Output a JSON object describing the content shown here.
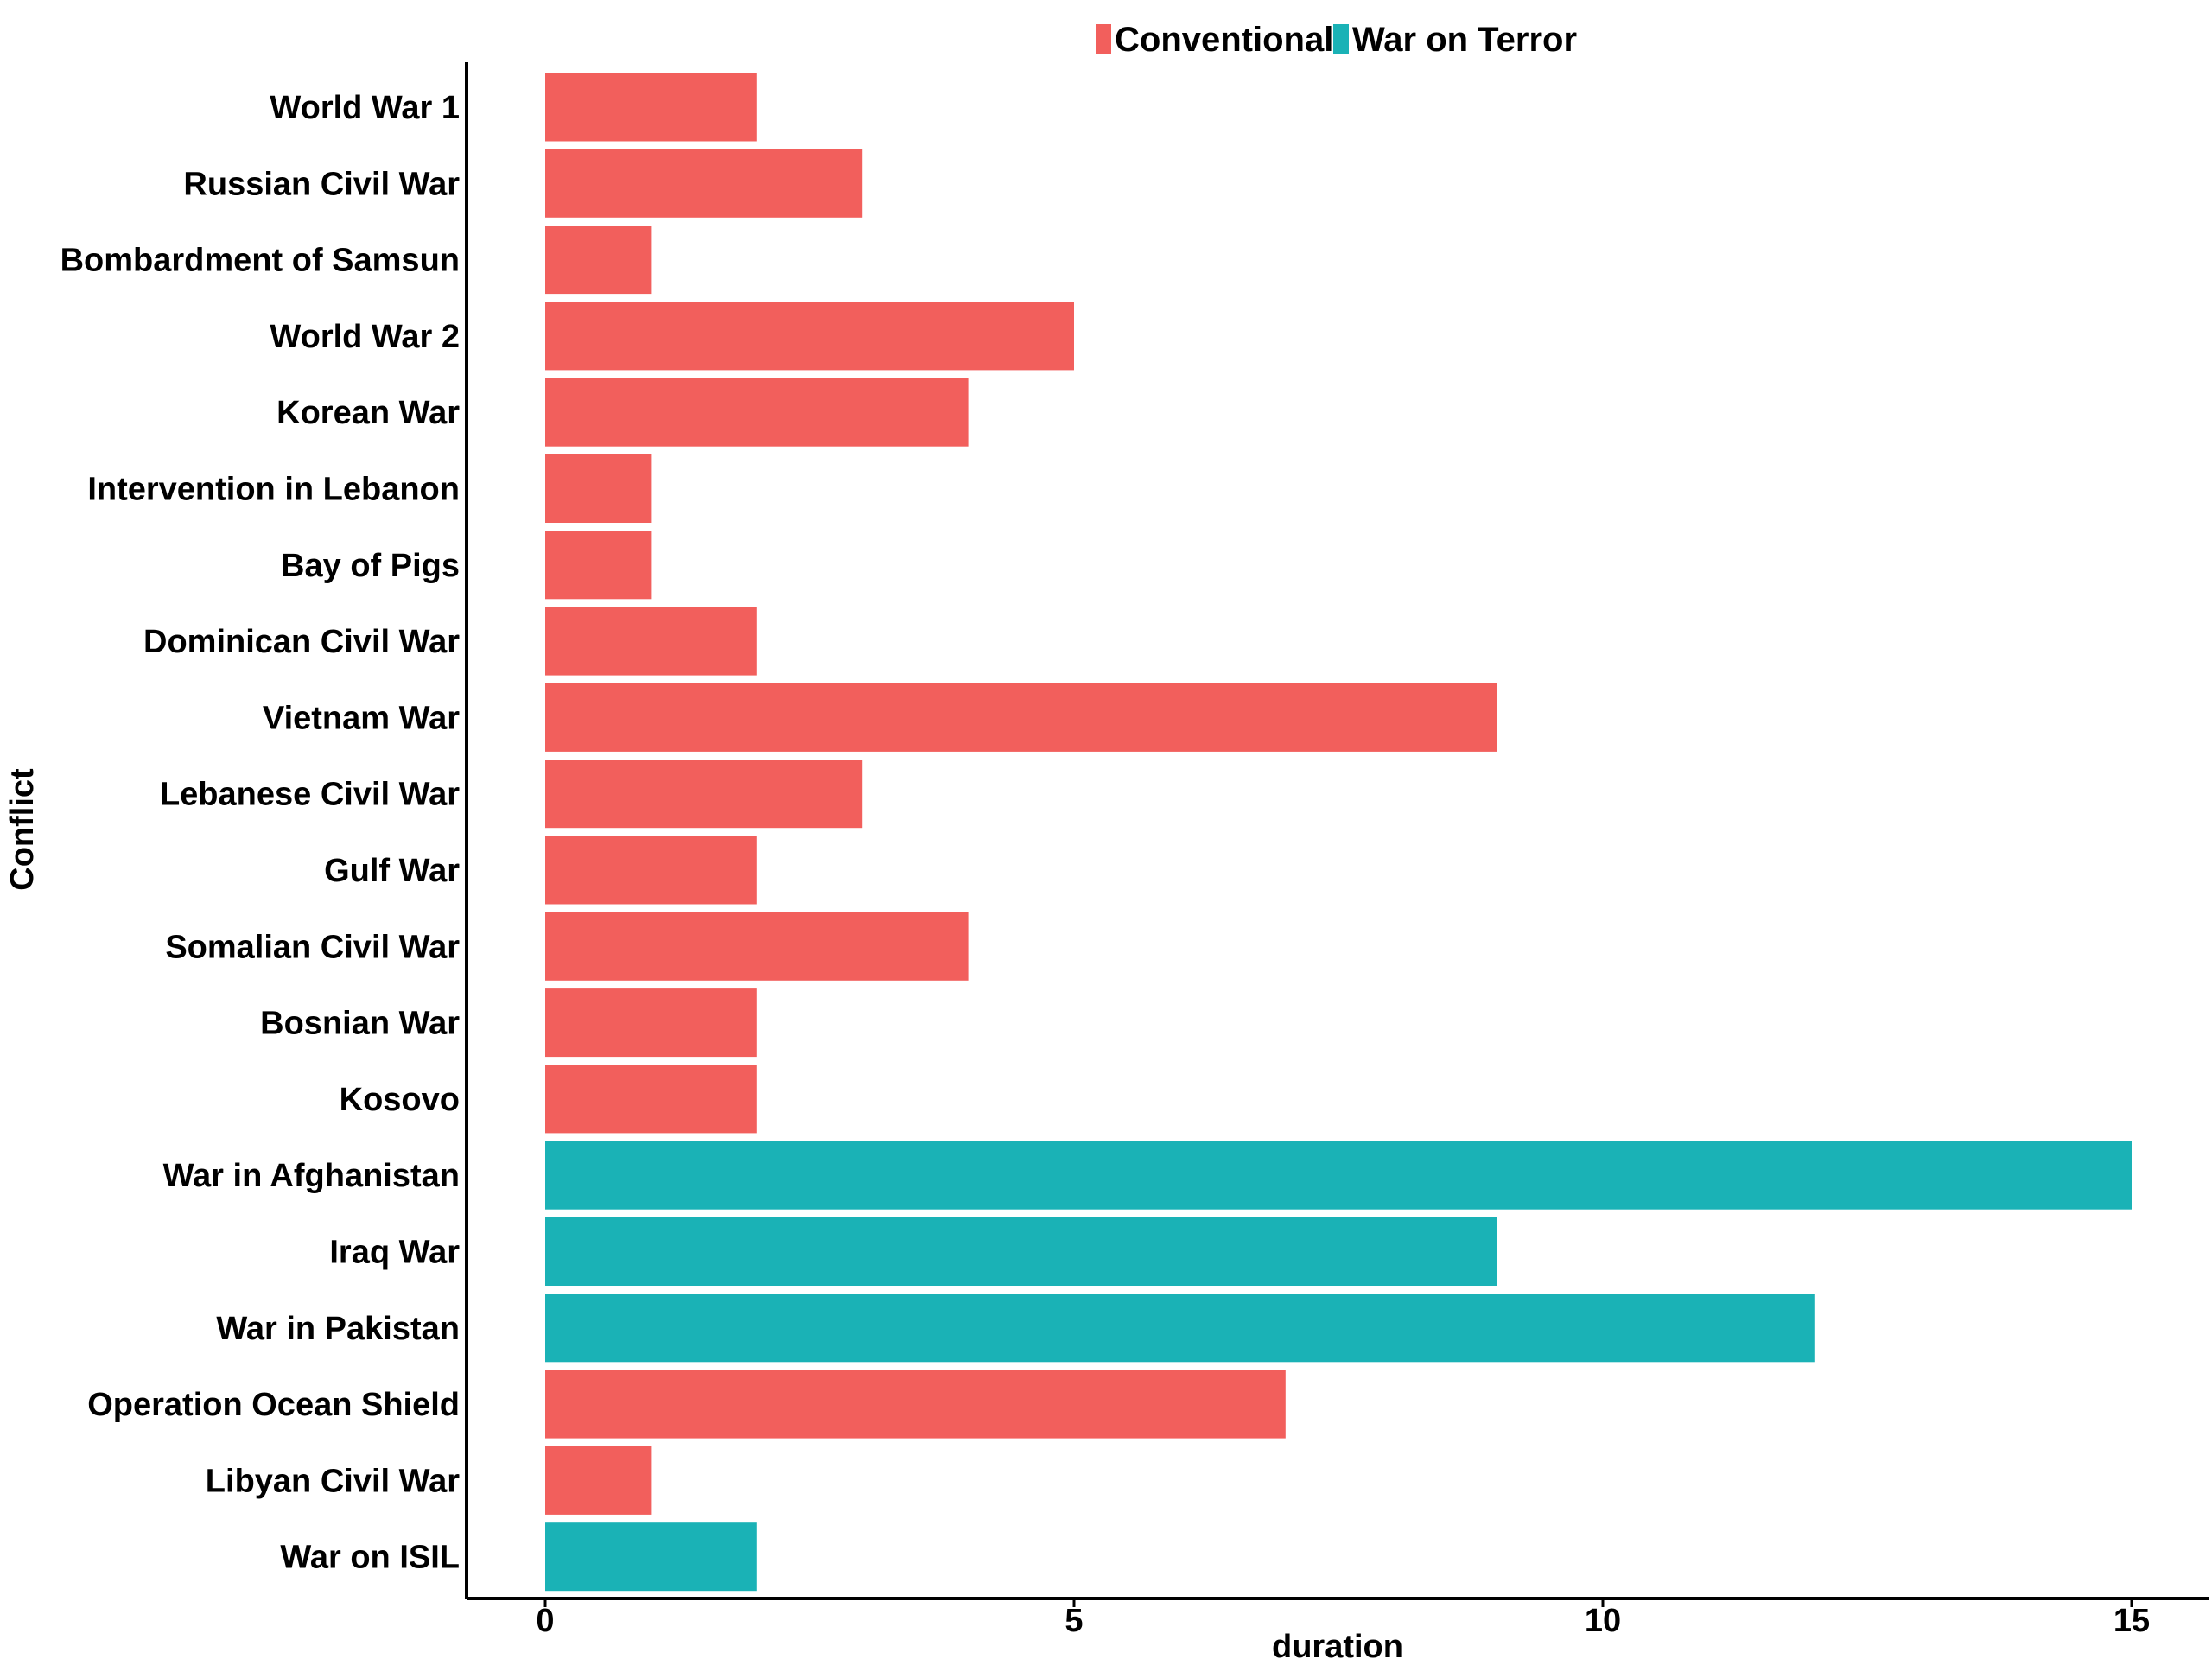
{
  "chart_data": {
    "type": "bar",
    "orientation": "horizontal",
    "xlabel": "duration",
    "ylabel": "Conflict",
    "xlim": [
      0,
      15.7
    ],
    "xticks": [
      0,
      5,
      10,
      15
    ],
    "grid": false,
    "legend_position": "top",
    "legend": [
      {
        "name": "Conventional",
        "color": "#F25F5C"
      },
      {
        "name": "War on Terror",
        "color": "#1AB2B6"
      }
    ],
    "categories": [
      "World War 1",
      "Russian Civil War",
      "Bombardment of Samsun",
      "World War 2",
      "Korean War",
      "Intervention in Lebanon",
      "Bay of Pigs",
      "Dominican Civil War",
      "Vietnam War",
      "Lebanese Civil War",
      "Gulf War",
      "Somalian Civil War",
      "Bosnian War",
      "Kosovo",
      "War in Afghanistan",
      "Iraq War",
      "War in Pakistan",
      "Operation Ocean Shield",
      "Libyan Civil War",
      "War on ISIL"
    ],
    "values": [
      2,
      3,
      1,
      5,
      4,
      1,
      1,
      2,
      9,
      3,
      2,
      4,
      2,
      2,
      15,
      9,
      12,
      7,
      1,
      2
    ],
    "groups": [
      "Conventional",
      "Conventional",
      "Conventional",
      "Conventional",
      "Conventional",
      "Conventional",
      "Conventional",
      "Conventional",
      "Conventional",
      "Conventional",
      "Conventional",
      "Conventional",
      "Conventional",
      "Conventional",
      "War on Terror",
      "War on Terror",
      "War on Terror",
      "Conventional",
      "Conventional",
      "War on Terror"
    ]
  }
}
